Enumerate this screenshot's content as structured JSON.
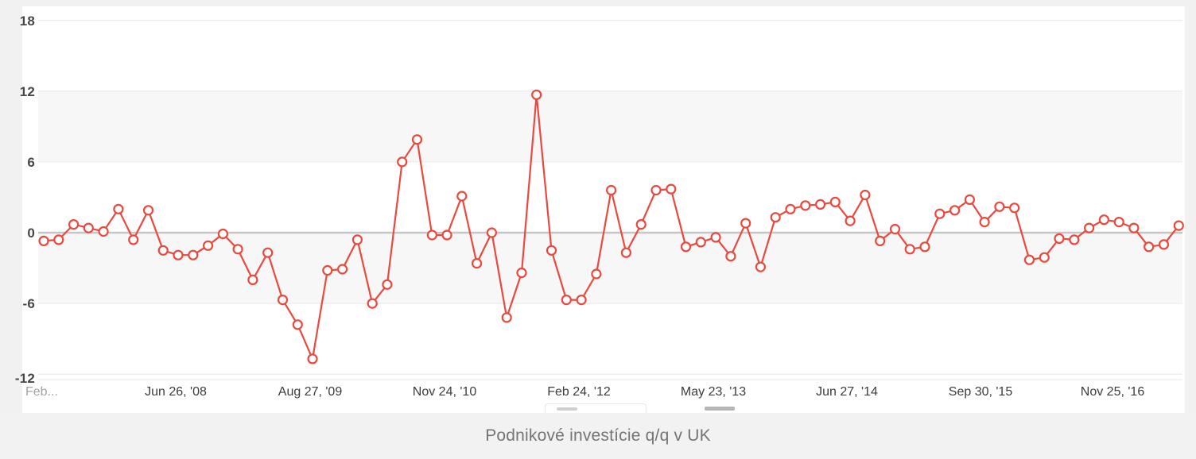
{
  "footer": {
    "title": "Podnikové investície q/q v UK"
  },
  "colors": {
    "line": "#e9493e",
    "marker_fill": "#ffffff",
    "band": "#f7f7f7",
    "grid": "#e8e8e8",
    "zero_line": "#c6c6c6",
    "panel_bg": "#ffffff",
    "page_bg": "#f1f1f1",
    "footer_bg": "#f2f2f2",
    "title_text": "#757575",
    "tick_text": "#3c3c3c",
    "truncated_tick_text": "#a3a3a3"
  },
  "chart_data": {
    "type": "line",
    "title": "Podnikové investície q/q v UK",
    "xlabel": "",
    "ylabel": "",
    "ylim": [
      -12.6,
      18.8
    ],
    "y_tick_labels": [
      "18",
      "12",
      "6",
      "0",
      "-6",
      "-12"
    ],
    "y_tick_values": [
      18,
      12,
      6,
      0,
      -6,
      -12
    ],
    "x_tick_labels": [
      "Feb...",
      "Jun 26, '08",
      "Aug 27, '09",
      "Nov 24, '10",
      "Feb 24, '12",
      "May 23, '13",
      "Jun 27, '14",
      "Sep 30, '15",
      "Nov 25, '16"
    ],
    "grid": "horizontal gridlines with alternating shaded bands between 6..12 and -6..0; emphasized zero line",
    "legend_position": "bottom (clipped out of view)",
    "marker_style": "circle, white fill, red stroke",
    "series": [
      {
        "name": "Podnikové investície q/q v UK",
        "color": "#e9493e",
        "values": [
          -0.7,
          -0.6,
          0.7,
          0.4,
          0.1,
          2.0,
          -0.6,
          1.9,
          -1.5,
          -1.9,
          -1.9,
          -1.1,
          -0.1,
          -1.4,
          -4.0,
          -1.7,
          -5.7,
          -7.8,
          -10.7,
          -3.2,
          -3.1,
          -0.6,
          -6.0,
          -4.4,
          6.0,
          7.9,
          -0.2,
          -0.2,
          3.1,
          -2.6,
          0.0,
          -7.2,
          -3.4,
          11.7,
          -1.5,
          -5.7,
          -5.7,
          -3.5,
          3.6,
          -1.7,
          0.7,
          3.6,
          3.7,
          -1.2,
          -0.8,
          -0.4,
          -2.0,
          0.8,
          -2.9,
          1.3,
          2.0,
          2.3,
          2.4,
          2.6,
          1.0,
          3.2,
          -0.7,
          0.3,
          -1.4,
          -1.2,
          1.6,
          1.9,
          2.8,
          0.9,
          2.2,
          2.1,
          -2.3,
          -2.1,
          -0.5,
          -0.6,
          0.4,
          1.1,
          0.9,
          0.4,
          -1.2,
          -1.0,
          0.6
        ]
      }
    ]
  }
}
